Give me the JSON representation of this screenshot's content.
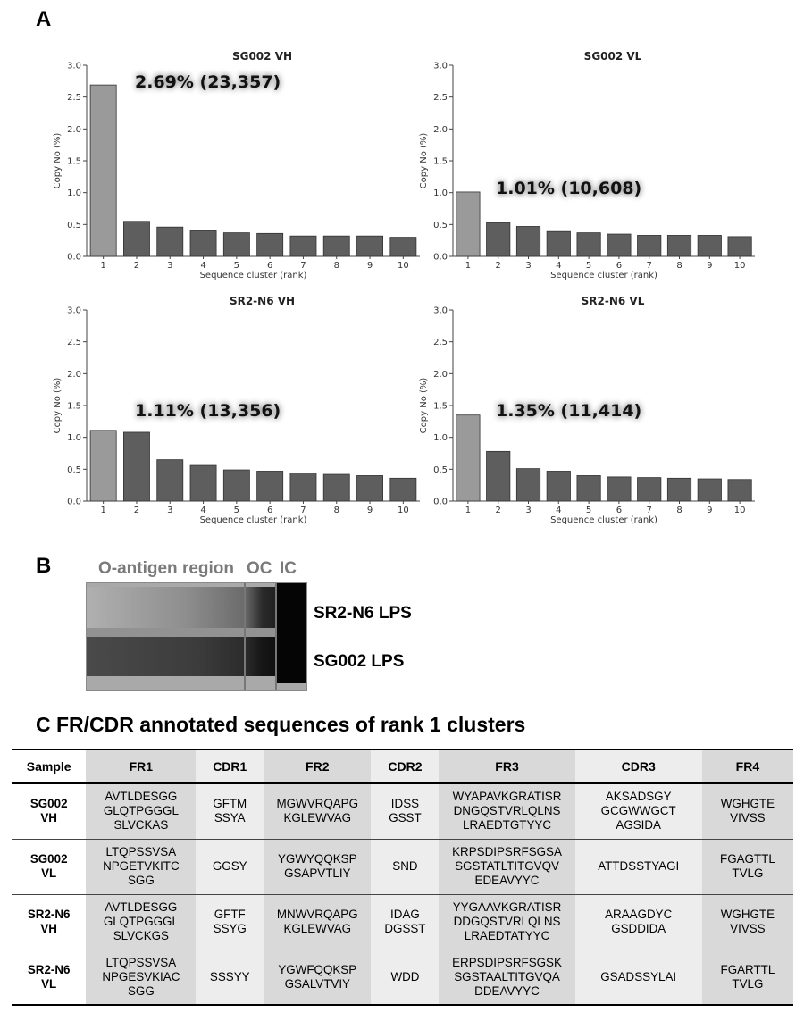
{
  "panel_letters": {
    "a": "A",
    "b": "B"
  },
  "chart_data": [
    {
      "type": "bar",
      "title": "SG002 VH",
      "xlabel": "Sequence cluster (rank)",
      "ylabel": "Copy No (%)",
      "ylim": [
        0,
        3.0
      ],
      "yticks": [
        "0.0",
        "0.5",
        "1.0",
        "1.5",
        "2.0",
        "2.5",
        "3.0"
      ],
      "categories": [
        "1",
        "2",
        "3",
        "4",
        "5",
        "6",
        "7",
        "8",
        "9",
        "10"
      ],
      "values": [
        2.69,
        0.55,
        0.46,
        0.4,
        0.37,
        0.36,
        0.32,
        0.32,
        0.32,
        0.3
      ],
      "annotation": "2.69% (23,357)",
      "grid": false
    },
    {
      "type": "bar",
      "title": "SG002 VL",
      "xlabel": "Sequence cluster (rank)",
      "ylabel": "Copy No (%)",
      "ylim": [
        0,
        3.0
      ],
      "yticks": [
        "0.0",
        "0.5",
        "1.0",
        "1.5",
        "2.0",
        "2.5",
        "3.0"
      ],
      "categories": [
        "1",
        "2",
        "3",
        "4",
        "5",
        "6",
        "7",
        "8",
        "9",
        "10"
      ],
      "values": [
        1.01,
        0.53,
        0.47,
        0.39,
        0.37,
        0.35,
        0.33,
        0.33,
        0.33,
        0.31
      ],
      "annotation": "1.01% (10,608)",
      "grid": false
    },
    {
      "type": "bar",
      "title": "SR2-N6 VH",
      "xlabel": "Sequence cluster (rank)",
      "ylabel": "Copy No (%)",
      "ylim": [
        0,
        3.0
      ],
      "yticks": [
        "0.0",
        "0.5",
        "1.0",
        "1.5",
        "2.0",
        "2.5",
        "3.0"
      ],
      "categories": [
        "1",
        "2",
        "3",
        "4",
        "5",
        "6",
        "7",
        "8",
        "9",
        "10"
      ],
      "values": [
        1.11,
        1.08,
        0.65,
        0.56,
        0.49,
        0.47,
        0.44,
        0.42,
        0.4,
        0.36
      ],
      "annotation": "1.11% (13,356)",
      "grid": false
    },
    {
      "type": "bar",
      "title": "SR2-N6 VL",
      "xlabel": "Sequence cluster (rank)",
      "ylabel": "Copy No (%)",
      "ylim": [
        0,
        3.0
      ],
      "yticks": [
        "0.0",
        "0.5",
        "1.0",
        "1.5",
        "2.0",
        "2.5",
        "3.0"
      ],
      "categories": [
        "1",
        "2",
        "3",
        "4",
        "5",
        "6",
        "7",
        "8",
        "9",
        "10"
      ],
      "values": [
        1.35,
        0.78,
        0.51,
        0.47,
        0.4,
        0.38,
        0.37,
        0.36,
        0.35,
        0.34
      ],
      "annotation": "1.35% (11,414)",
      "grid": false
    }
  ],
  "colors": {
    "rank1_bar": "#9a9a9a",
    "other_bar": "#5e5e5e",
    "fr_cell": "#d9d9d9",
    "cdr_cell": "#ededed"
  },
  "gel": {
    "region_label": "O-antigen region",
    "oc_label": "OC",
    "ic_label": "IC",
    "lane_top": "SR2-N6 LPS",
    "lane_bottom": "SG002 LPS"
  },
  "section_c": {
    "title": "C FR/CDR annotated sequences of rank 1 clusters",
    "headers": [
      "Sample",
      "FR1",
      "CDR1",
      "FR2",
      "CDR2",
      "FR3",
      "CDR3",
      "FR4"
    ],
    "rows": [
      {
        "sample": [
          "SG002",
          "VH"
        ],
        "cells": [
          [
            "AVTLDESGG",
            "GLQTPGGGL",
            "SLVCKAS"
          ],
          [
            "GFTM",
            "SSYA"
          ],
          [
            "MGWVRQAPG",
            "KGLEWVAG"
          ],
          [
            "IDSS",
            "GSST"
          ],
          [
            "WYAPAVKGRATISR",
            "DNGQSTVRLQLNS",
            "LRAEDTGTYYC"
          ],
          [
            "AKSADSGY",
            "GCGWWGCT",
            "AGSIDA"
          ],
          [
            "WGHGTE",
            "VIVSS"
          ]
        ]
      },
      {
        "sample": [
          "SG002",
          "VL"
        ],
        "cells": [
          [
            "LTQPSSVSA",
            "NPGETVKITC",
            "SGG"
          ],
          [
            "GGSY"
          ],
          [
            "YGWYQQKSP",
            "GSAPVTLIY"
          ],
          [
            "SND"
          ],
          [
            "KRPSDIPSRFSGSA",
            "SGSTATLTITGVQV",
            "EDEAVYYC"
          ],
          [
            "ATTDSSTYAGI"
          ],
          [
            "FGAGTTL",
            "TVLG"
          ]
        ]
      },
      {
        "sample": [
          "SR2-N6",
          "VH"
        ],
        "cells": [
          [
            "AVTLDESGG",
            "GLQTPGGGL",
            "SLVCKGS"
          ],
          [
            "GFTF",
            "SSYG"
          ],
          [
            "MNWVRQAPG",
            "KGLEWVAG"
          ],
          [
            "IDAG",
            "DGSST"
          ],
          [
            "YYGAAVKGRATISR",
            "DDGQSTVRLQLNS",
            "LRAEDTATYYC"
          ],
          [
            "ARAAGDYC",
            "GSDDIDA"
          ],
          [
            "WGHGTE",
            "VIVSS"
          ]
        ]
      },
      {
        "sample": [
          "SR2-N6",
          "VL"
        ],
        "cells": [
          [
            "LTQPSSVSA",
            "NPGESVKIAC",
            "SGG"
          ],
          [
            "SSSYY"
          ],
          [
            "YGWFQQKSP",
            "GSALVTVIY"
          ],
          [
            "WDD"
          ],
          [
            "ERPSDIPSRFSGSK",
            "SGSTAALTITGVQA",
            "DDEAVYYC"
          ],
          [
            "GSADSSYLAI"
          ],
          [
            "FGARTTL",
            "TVLG"
          ]
        ]
      }
    ]
  }
}
